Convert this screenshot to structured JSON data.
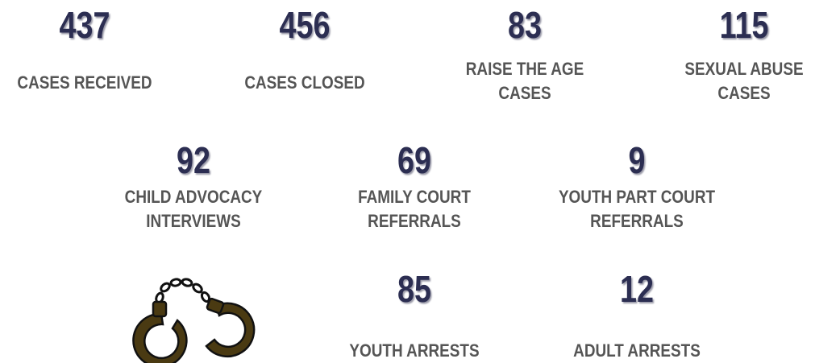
{
  "stats": [
    {
      "number": "437",
      "label": [
        "CASES RECEIVED"
      ]
    },
    {
      "number": "456",
      "label": [
        "CASES CLOSED"
      ]
    },
    {
      "number": "83",
      "label": [
        "RAISE THE AGE",
        "CASES"
      ]
    },
    {
      "number": "115",
      "label": [
        "SEXUAL ABUSE",
        "CASES"
      ]
    },
    {
      "number": "92",
      "label": [
        "CHILD ADVOCACY",
        "INTERVIEWS"
      ]
    },
    {
      "number": "69",
      "label": [
        "FAMILY COURT",
        "REFERRALS"
      ]
    },
    {
      "number": "9",
      "label": [
        "YOUTH PART COURT",
        "REFERRALS"
      ]
    },
    {
      "number": "85",
      "label": [
        "YOUTH ARRESTS"
      ]
    },
    {
      "number": "12",
      "label": [
        "ADULT ARRESTS"
      ]
    }
  ]
}
